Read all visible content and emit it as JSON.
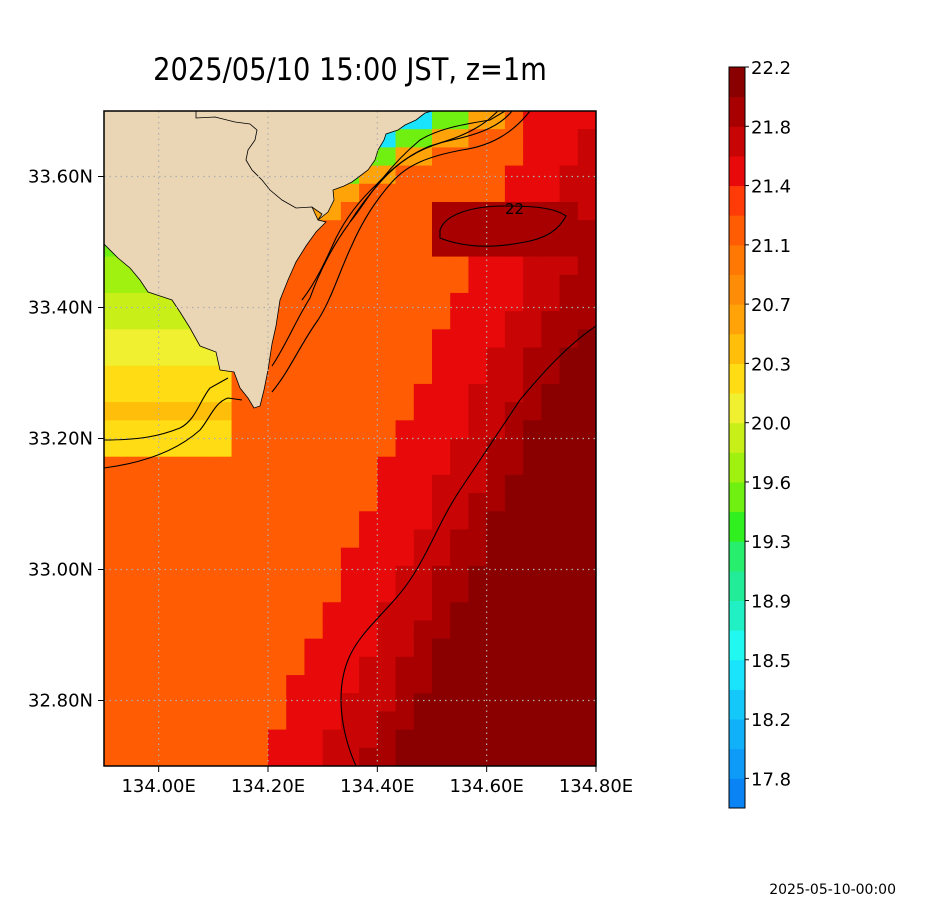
{
  "title": "2025/05/10 15:00 JST, z=1m",
  "footer_timestamp": "2025-05-10-00:00",
  "map": {
    "lon_range": [
      133.9,
      134.8
    ],
    "lat_range": [
      32.7,
      33.7
    ],
    "x_ticks": [
      {
        "value": 134.0,
        "label": "134.00E"
      },
      {
        "value": 134.2,
        "label": "134.20E"
      },
      {
        "value": 134.4,
        "label": "134.40E"
      },
      {
        "value": 134.6,
        "label": "134.60E"
      },
      {
        "value": 134.8,
        "label": "134.80E"
      }
    ],
    "y_ticks": [
      {
        "value": 33.6,
        "label": "33.60N"
      },
      {
        "value": 33.4,
        "label": "33.40N"
      },
      {
        "value": 33.2,
        "label": "33.20N"
      },
      {
        "value": 33.0,
        "label": "33.00N"
      },
      {
        "value": 32.8,
        "label": "32.80N"
      }
    ],
    "grid": "dotted",
    "land_color": "#ead5b5",
    "contour_label": "22"
  },
  "colorbar": {
    "orientation": "vertical",
    "colors": [
      "#0a84f5",
      "#0e9af7",
      "#10b1f8",
      "#14c9fa",
      "#1ae4fc",
      "#20f8f0",
      "#20f0c4",
      "#22ec98",
      "#28ee6e",
      "#30f020",
      "#70f010",
      "#a0f010",
      "#c8f018",
      "#f0f030",
      "#ffdc14",
      "#ffbe0a",
      "#ffa308",
      "#ff8c06",
      "#ff7804",
      "#ff5c04",
      "#ff3c08",
      "#e80a0a",
      "#c80404",
      "#a80000",
      "#8a0000"
    ],
    "tick_labels": [
      "17.8",
      "18.2",
      "18.5",
      "18.9",
      "19.3",
      "19.6",
      "20.0",
      "20.3",
      "20.7",
      "21.1",
      "21.4",
      "21.8",
      "22.2"
    ]
  },
  "chart_data": {
    "type": "heatmap",
    "title": "2025/05/10 15:00 JST, z=1m",
    "variable_levels": [
      17.8,
      18.2,
      18.5,
      18.9,
      19.3,
      19.6,
      20.0,
      20.3,
      20.7,
      21.1,
      21.4,
      21.8,
      22.2
    ],
    "x_range": [
      133.9,
      134.8
    ],
    "y_range": [
      32.7,
      33.7
    ],
    "contour_labels": [
      "22"
    ]
  }
}
